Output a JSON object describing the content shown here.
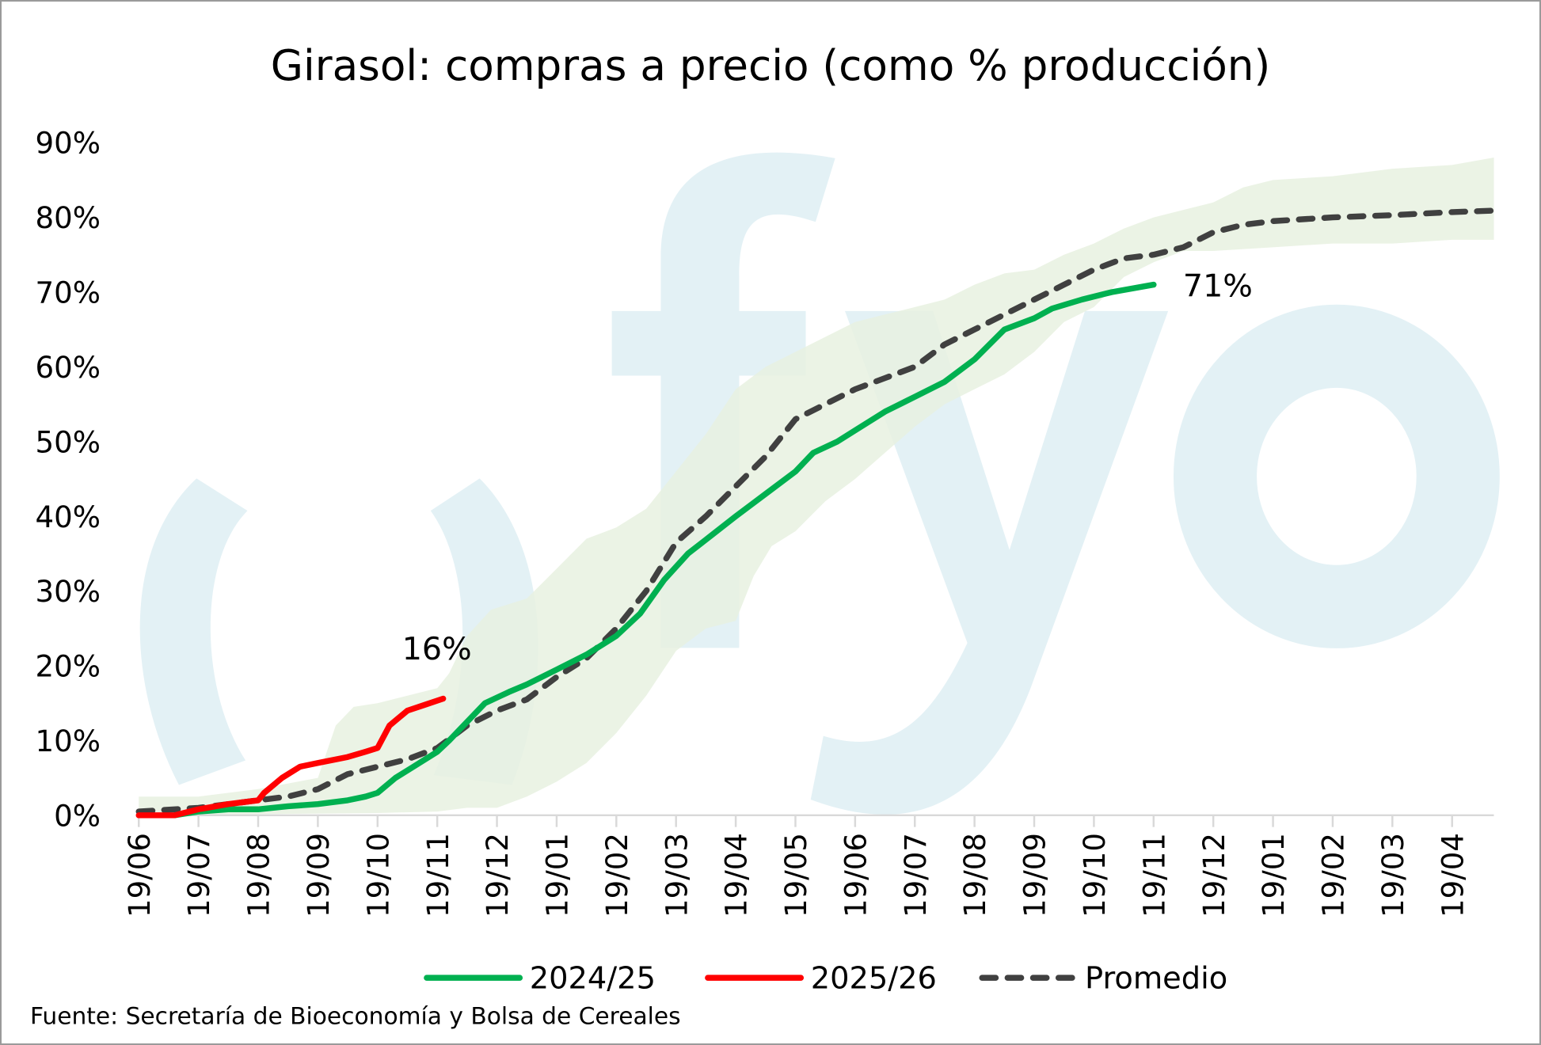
{
  "chart_data": {
    "type": "line",
    "title": "Girasol: compras a precio (como % producción)",
    "xlabel": "",
    "ylabel": "",
    "ylim": [
      0,
      90
    ],
    "y_ticks": [
      "0%",
      "10%",
      "20%",
      "30%",
      "40%",
      "50%",
      "60%",
      "70%",
      "80%",
      "90%"
    ],
    "x_ticks": [
      "19/06",
      "19/07",
      "19/08",
      "19/09",
      "19/10",
      "19/11",
      "19/12",
      "19/01",
      "19/02",
      "19/03",
      "19/04",
      "19/05",
      "19/06",
      "19/07",
      "19/08",
      "19/09",
      "19/10",
      "19/11",
      "19/12",
      "19/01",
      "19/02",
      "19/03",
      "19/04"
    ],
    "x_unit": "months since 19/06",
    "xlim": [
      0,
      22.7
    ],
    "colors": {
      "s2024": "#00b050",
      "s2025": "#ff0000",
      "avg": "#404040",
      "band": "#e8f1e0",
      "watermark": "#e3f1f5",
      "grid": "#d9d9d9"
    },
    "series": [
      {
        "name": "2024/25",
        "color": "#00b050",
        "points": [
          [
            0.6,
            0
          ],
          [
            1,
            0.5
          ],
          [
            1.5,
            0.8
          ],
          [
            2,
            0.8
          ],
          [
            2.5,
            1.2
          ],
          [
            3,
            1.5
          ],
          [
            3.5,
            2
          ],
          [
            3.8,
            2.5
          ],
          [
            4,
            3
          ],
          [
            4.3,
            5
          ],
          [
            4.6,
            6.5
          ],
          [
            5,
            8.5
          ],
          [
            5.2,
            10
          ],
          [
            5.5,
            12.5
          ],
          [
            5.8,
            15
          ],
          [
            6.2,
            16.5
          ],
          [
            6.5,
            17.5
          ],
          [
            7,
            19.5
          ],
          [
            7.5,
            21.5
          ],
          [
            8,
            24
          ],
          [
            8.4,
            27
          ],
          [
            8.8,
            31.5
          ],
          [
            9.2,
            35
          ],
          [
            9.6,
            37.5
          ],
          [
            10,
            40
          ],
          [
            10.5,
            43
          ],
          [
            11,
            46
          ],
          [
            11.3,
            48.5
          ],
          [
            11.7,
            50
          ],
          [
            12,
            51.5
          ],
          [
            12.5,
            54
          ],
          [
            13,
            56
          ],
          [
            13.5,
            58
          ],
          [
            14,
            61
          ],
          [
            14.5,
            65
          ],
          [
            15,
            66.5
          ],
          [
            15.3,
            67.8
          ],
          [
            15.8,
            69
          ],
          [
            16.3,
            70
          ],
          [
            17,
            71
          ]
        ]
      },
      {
        "name": "2025/26",
        "color": "#ff0000",
        "points": [
          [
            0,
            0
          ],
          [
            0.6,
            0
          ],
          [
            1,
            0.8
          ],
          [
            1.5,
            1.5
          ],
          [
            2,
            2
          ],
          [
            2.1,
            3
          ],
          [
            2.4,
            5
          ],
          [
            2.7,
            6.5
          ],
          [
            3,
            7
          ],
          [
            3.5,
            7.8
          ],
          [
            3.8,
            8.5
          ],
          [
            4,
            9
          ],
          [
            4.2,
            12
          ],
          [
            4.5,
            14
          ],
          [
            4.8,
            14.8
          ],
          [
            5.1,
            15.6
          ]
        ]
      },
      {
        "name": "Promedio",
        "color": "#404040",
        "dashed": true,
        "points": [
          [
            0,
            0.5
          ],
          [
            1,
            1
          ],
          [
            1.5,
            1.5
          ],
          [
            2,
            2
          ],
          [
            2.5,
            2.5
          ],
          [
            3,
            3.5
          ],
          [
            3.5,
            5.5
          ],
          [
            4,
            6.5
          ],
          [
            4.5,
            7.5
          ],
          [
            5,
            9
          ],
          [
            5.5,
            12
          ],
          [
            6,
            14
          ],
          [
            6.5,
            15.5
          ],
          [
            7,
            18.5
          ],
          [
            7.5,
            21
          ],
          [
            8,
            25
          ],
          [
            8.5,
            30
          ],
          [
            9,
            36.5
          ],
          [
            9.5,
            40
          ],
          [
            10,
            44
          ],
          [
            10.5,
            48
          ],
          [
            11,
            53
          ],
          [
            11.5,
            55
          ],
          [
            12,
            57
          ],
          [
            12.5,
            58.5
          ],
          [
            13,
            60
          ],
          [
            13.5,
            63
          ],
          [
            14,
            65
          ],
          [
            14.5,
            67
          ],
          [
            15,
            69
          ],
          [
            15.5,
            71
          ],
          [
            16,
            73
          ],
          [
            16.5,
            74.5
          ],
          [
            17,
            75
          ],
          [
            17.5,
            76
          ],
          [
            18,
            78
          ],
          [
            18.5,
            79
          ],
          [
            19,
            79.5
          ],
          [
            20,
            80
          ],
          [
            21,
            80.3
          ],
          [
            22,
            80.7
          ],
          [
            22.7,
            80.9
          ]
        ]
      }
    ],
    "band": {
      "upper": [
        [
          0,
          2.5
        ],
        [
          1,
          2.5
        ],
        [
          2,
          3.5
        ],
        [
          3,
          5
        ],
        [
          3.3,
          12
        ],
        [
          3.6,
          14.5
        ],
        [
          4,
          15
        ],
        [
          4.5,
          16
        ],
        [
          5,
          17
        ],
        [
          5.2,
          19
        ],
        [
          5.5,
          24
        ],
        [
          5.9,
          27.5
        ],
        [
          6.5,
          29
        ],
        [
          7,
          33
        ],
        [
          7.5,
          37
        ],
        [
          8,
          38.5
        ],
        [
          8.5,
          41
        ],
        [
          9,
          46
        ],
        [
          9.5,
          51
        ],
        [
          10,
          57
        ],
        [
          10.5,
          60
        ],
        [
          11,
          62
        ],
        [
          11.5,
          64
        ],
        [
          12,
          66
        ],
        [
          12.5,
          67
        ],
        [
          13,
          68
        ],
        [
          13.5,
          69
        ],
        [
          14,
          71
        ],
        [
          14.5,
          72.5
        ],
        [
          15,
          73
        ],
        [
          15.5,
          75
        ],
        [
          16,
          76.5
        ],
        [
          16.5,
          78.5
        ],
        [
          17,
          80
        ],
        [
          17.5,
          81
        ],
        [
          18,
          82
        ],
        [
          18.5,
          84
        ],
        [
          19,
          85
        ],
        [
          20,
          85.5
        ],
        [
          21,
          86.5
        ],
        [
          22,
          87
        ],
        [
          22.7,
          88
        ]
      ],
      "lower": [
        [
          0,
          0
        ],
        [
          4,
          0.3
        ],
        [
          5,
          0.5
        ],
        [
          5.5,
          1
        ],
        [
          6,
          1
        ],
        [
          6.5,
          2.5
        ],
        [
          7,
          4.5
        ],
        [
          7.5,
          7
        ],
        [
          8,
          11
        ],
        [
          8.5,
          16
        ],
        [
          9,
          22
        ],
        [
          9.5,
          25
        ],
        [
          10,
          26
        ],
        [
          10.3,
          32
        ],
        [
          10.6,
          36
        ],
        [
          11,
          38
        ],
        [
          11.5,
          42
        ],
        [
          12,
          45
        ],
        [
          12.5,
          48.5
        ],
        [
          13,
          52
        ],
        [
          13.5,
          55
        ],
        [
          14,
          57
        ],
        [
          14.5,
          59
        ],
        [
          15,
          62
        ],
        [
          15.5,
          66
        ],
        [
          16,
          68
        ],
        [
          16.5,
          72
        ],
        [
          17,
          74
        ],
        [
          17.5,
          75.5
        ],
        [
          18,
          75.5
        ],
        [
          19,
          76
        ],
        [
          20,
          76.5
        ],
        [
          21,
          76.5
        ],
        [
          22,
          77
        ],
        [
          22.7,
          77
        ]
      ]
    },
    "annotations": [
      {
        "text": "16%",
        "x": 5.1,
        "y": 15.6
      },
      {
        "text": "71%",
        "x": 17,
        "y": 71
      }
    ],
    "legend": {
      "placement": "bottom",
      "entries": [
        "2024/25",
        "2025/26",
        "Promedio"
      ]
    },
    "grid": false
  },
  "source": "Fuente: Secretaría de Bioeconomía y Bolsa de Cereales",
  "watermark": "fyo"
}
